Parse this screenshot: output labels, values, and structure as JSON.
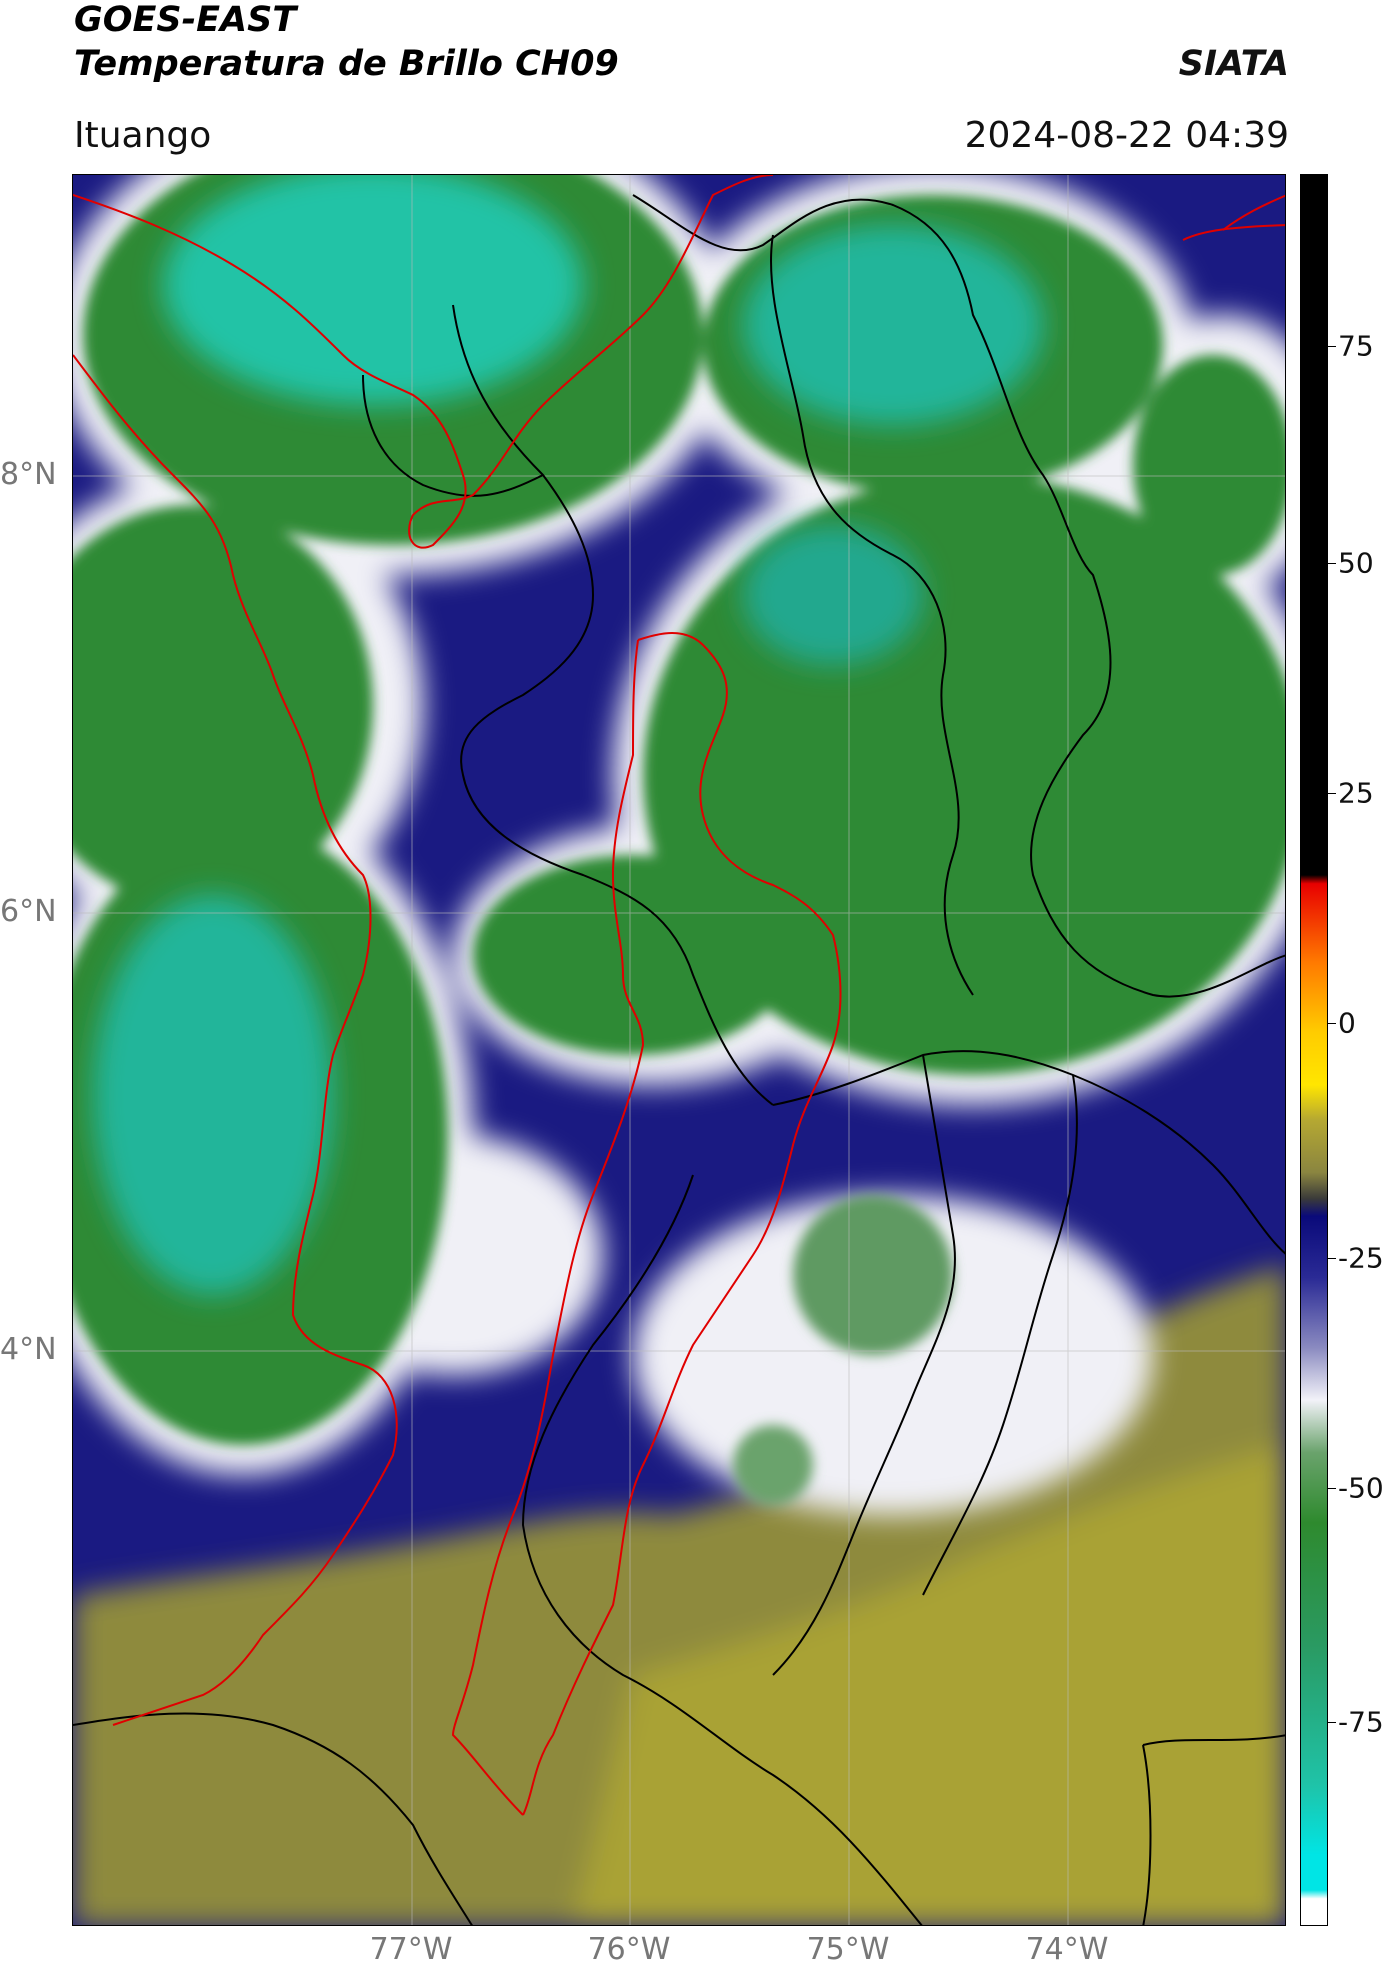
{
  "header": {
    "title_line1": "GOES-EAST",
    "title_line2": "Temperatura de Brillo CH09",
    "agency": "SIATA",
    "location": "Ituango",
    "timestamp": "2024-08-22 04:39"
  },
  "map": {
    "lat_labels": [
      "8°N",
      "6°N",
      "4°N"
    ],
    "lon_labels": [
      "77°W",
      "76°W",
      "75°W",
      "74°W"
    ],
    "boundary_colors": {
      "region": "#e00000",
      "admin": "#000000"
    }
  },
  "colorbar": {
    "ticks": [
      "75",
      "50",
      "25",
      "0",
      "-25",
      "-50",
      "-75"
    ],
    "colors": {
      "warm_black": "#000000",
      "red": "#e80000",
      "orange": "#ff8800",
      "yellow": "#ffe600",
      "olive": "#b5a832",
      "navy": "#0a0a7a",
      "white": "#f2f2f8",
      "green": "#2e8a2e",
      "teal": "#1fc3a8",
      "cyan": "#00e5e5"
    }
  }
}
